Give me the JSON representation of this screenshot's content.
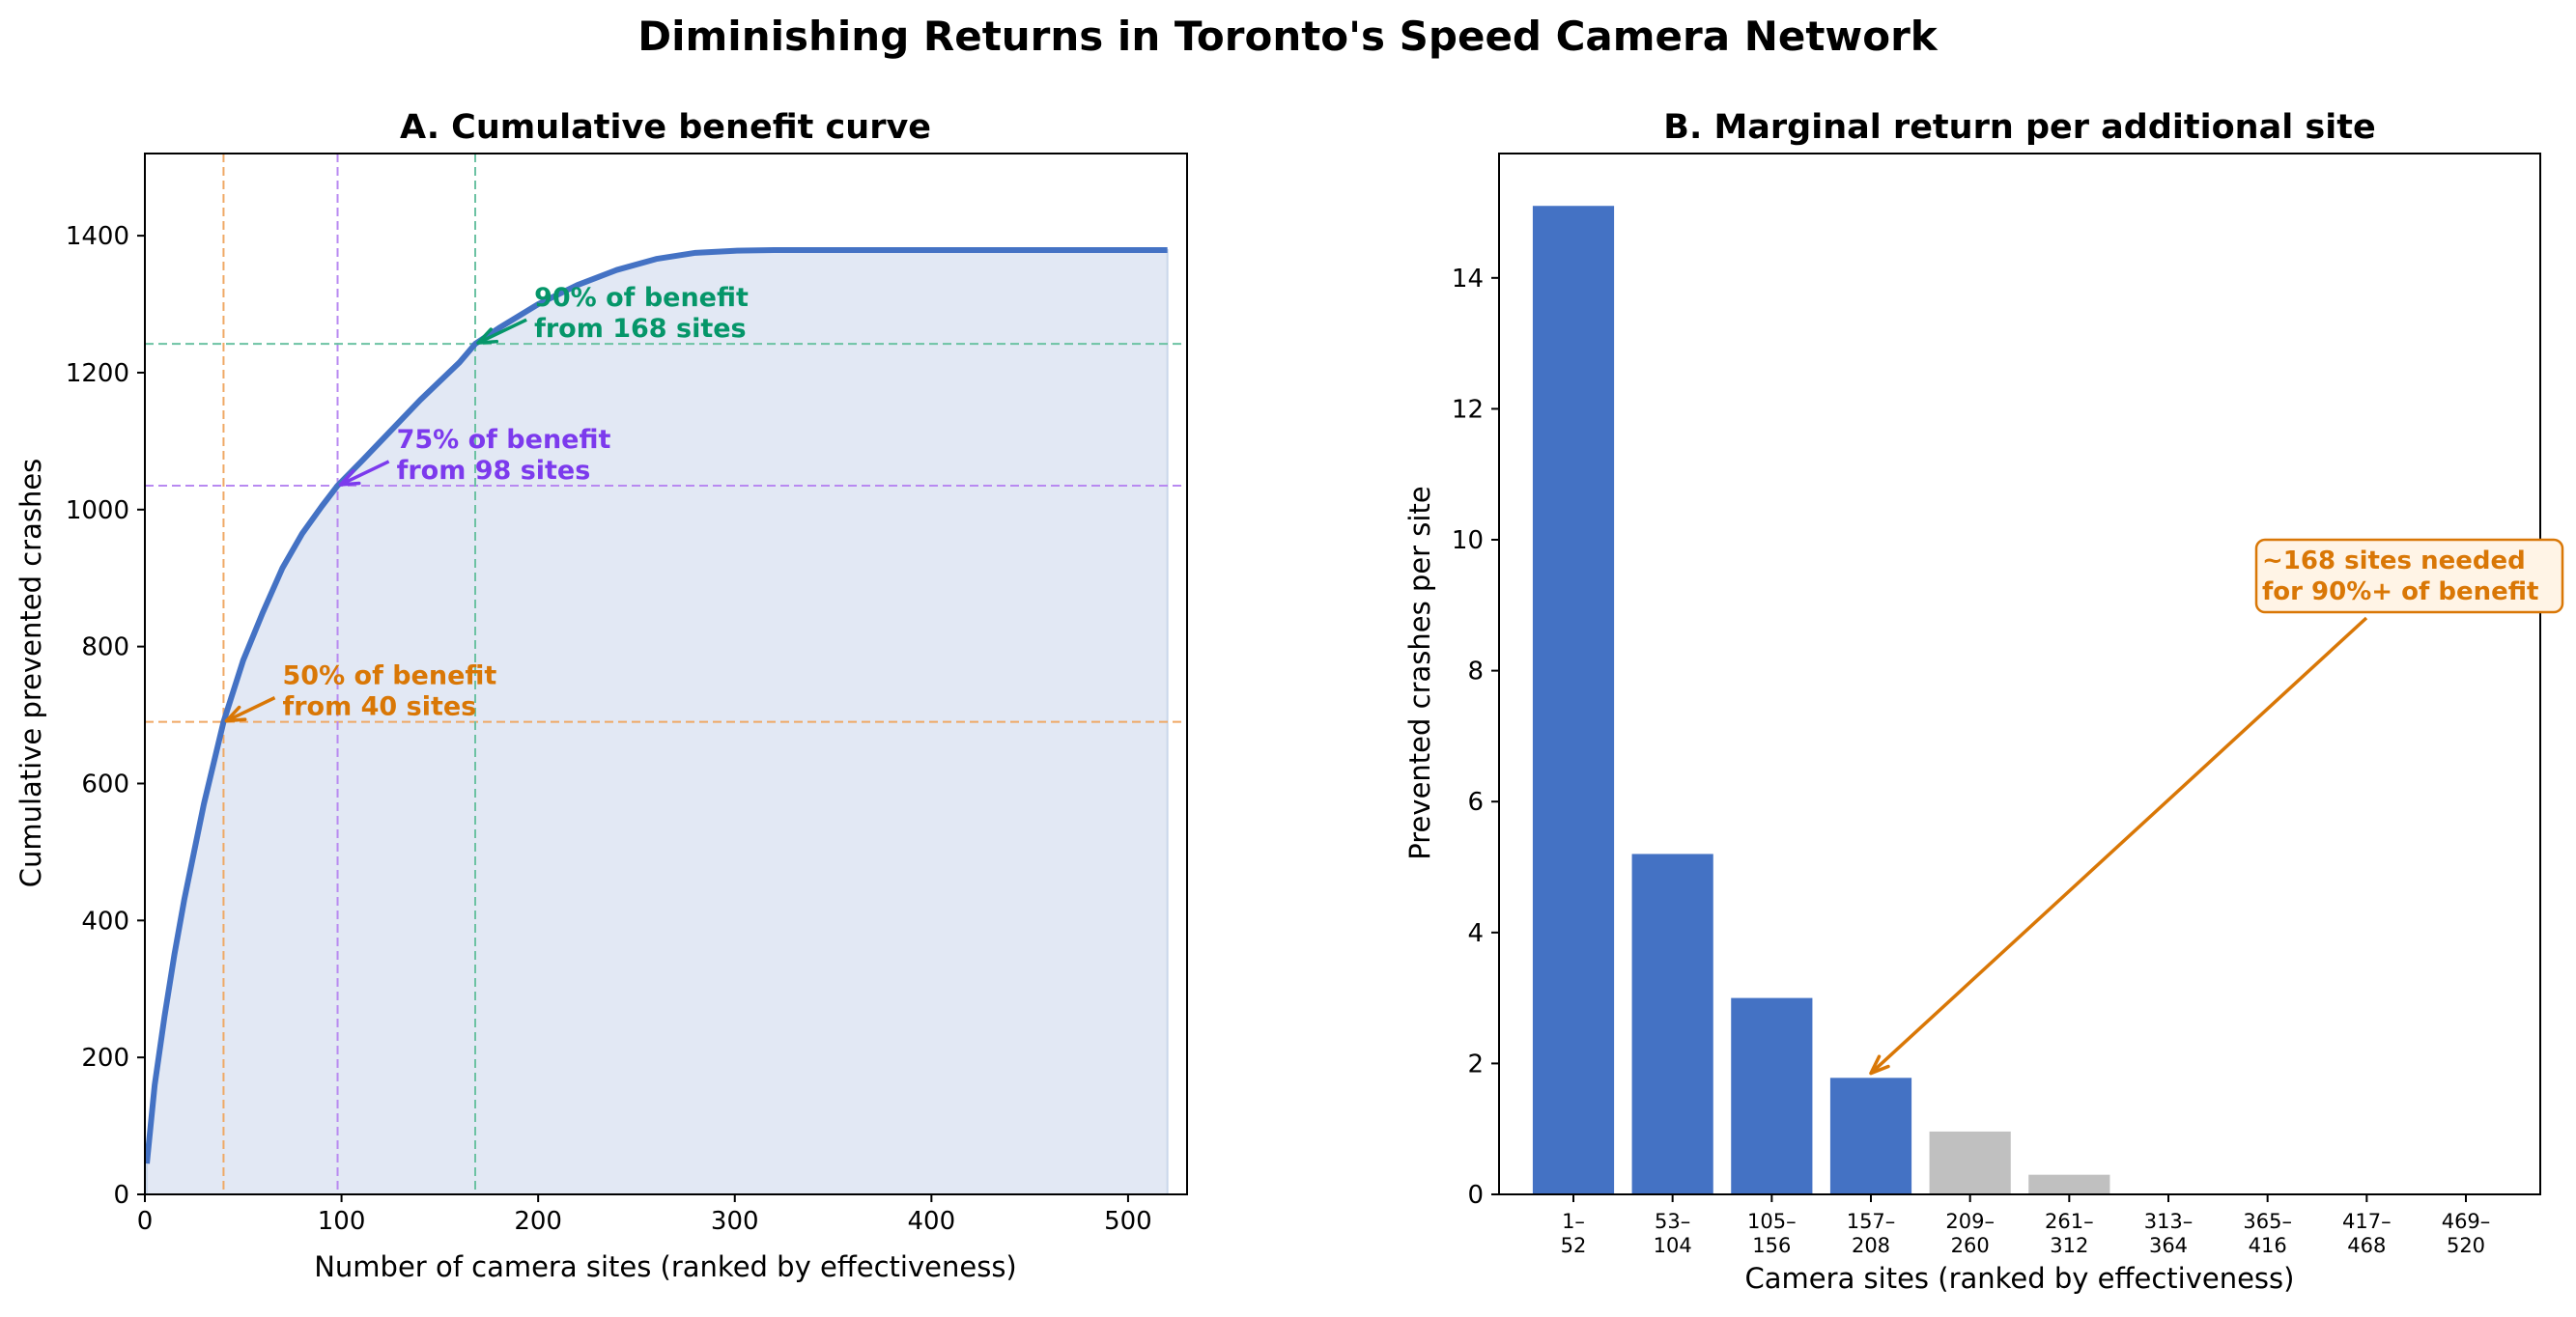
{
  "figure": {
    "title": "Diminishing Returns in Toronto's Speed Camera Network"
  },
  "chart_data": [
    {
      "type": "area",
      "title": "A. Cumulative benefit curve",
      "xlabel": "Number of camera sites (ranked by effectiveness)",
      "ylabel": "Cumulative prevented crashes",
      "xlim": [
        0,
        530
      ],
      "ylim": [
        0,
        1520
      ],
      "xticks": [
        0,
        100,
        200,
        300,
        400,
        500
      ],
      "yticks": [
        0,
        200,
        400,
        600,
        800,
        1000,
        1200,
        1400
      ],
      "grid": false,
      "series": [
        {
          "x": [
            1,
            5,
            10,
            15,
            20,
            25,
            30,
            35,
            40,
            50,
            60,
            70,
            80,
            90,
            98,
            110,
            120,
            140,
            160,
            168,
            180,
            200,
            220,
            240,
            260,
            280,
            300,
            320,
            350,
            400,
            450,
            500,
            520
          ],
          "y": [
            45,
            160,
            260,
            350,
            430,
            500,
            570,
            630,
            690,
            780,
            850,
            915,
            965,
            1005,
            1035,
            1070,
            1100,
            1160,
            1215,
            1242,
            1265,
            1300,
            1328,
            1350,
            1366,
            1375,
            1378,
            1379,
            1379,
            1379,
            1379,
            1379,
            1379
          ],
          "color": "#4472c4",
          "fill": "#e2e8f4"
        }
      ],
      "annotations": [
        {
          "site": 40,
          "value": 690,
          "label_line1": "50% of benefit",
          "label_line2": "from 40 sites",
          "color": "#d97706",
          "line_color": "#efa865",
          "text_at": [
            70,
            745
          ]
        },
        {
          "site": 98,
          "value": 1035,
          "label_line1": "75% of benefit",
          "label_line2": "from 98 sites",
          "color": "#7c3aed",
          "line_color": "#b889f1",
          "text_at": [
            128,
            1090
          ]
        },
        {
          "site": 168,
          "value": 1242,
          "label_line1": "90% of benefit",
          "label_line2": "from 168 sites",
          "color": "#059669",
          "line_color": "#6cc2a3",
          "text_at": [
            198,
            1297
          ]
        }
      ]
    },
    {
      "type": "bar",
      "title": "B. Marginal return per additional site",
      "xlabel": "Camera sites (ranked by effectiveness)",
      "ylabel": "Prevented crashes per site",
      "ylim": [
        0,
        15.9
      ],
      "yticks": [
        0,
        2,
        4,
        6,
        8,
        10,
        12,
        14
      ],
      "grid": false,
      "categories": [
        [
          "1–",
          "52"
        ],
        [
          "53–",
          "104"
        ],
        [
          "105–",
          "156"
        ],
        [
          "157–",
          "208"
        ],
        [
          "209–",
          "260"
        ],
        [
          "261–",
          "312"
        ],
        [
          "313–",
          "364"
        ],
        [
          "365–",
          "416"
        ],
        [
          "417–",
          "468"
        ],
        [
          "469–",
          "520"
        ]
      ],
      "values": [
        15.1,
        5.2,
        3.0,
        1.78,
        0.96,
        0.3,
        0,
        0,
        0,
        0
      ],
      "colors": [
        "#4472c4",
        "#4472c4",
        "#4472c4",
        "#4472c4",
        "#c0c0c0",
        "#c0c0c0",
        "#c0c0c0",
        "#c0c0c0",
        "#c0c0c0",
        "#c0c0c0"
      ],
      "annotation": {
        "label_line1": "~168 sites needed",
        "label_line2": "for 90%+ of benefit",
        "color": "#d97706",
        "target_bar": 3,
        "target_value": 1.85
      }
    }
  ]
}
